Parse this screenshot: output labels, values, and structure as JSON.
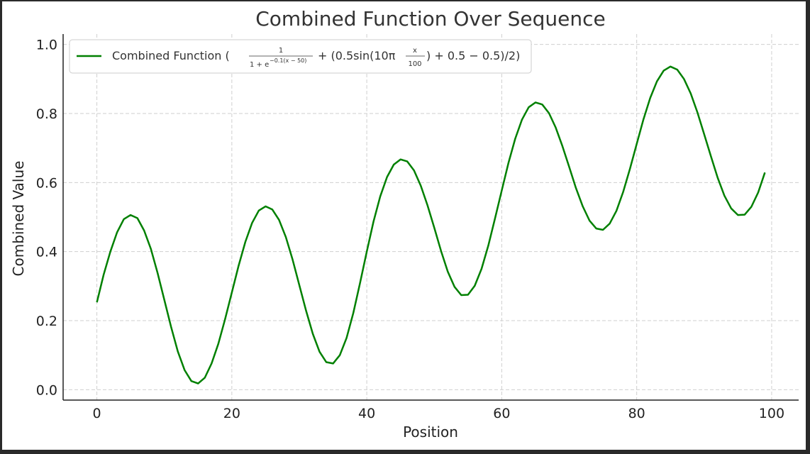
{
  "chart_data": {
    "type": "line",
    "title": "Combined Function Over Sequence",
    "xlabel": "Position",
    "ylabel": "Combined Value",
    "xlim": [
      -5,
      104
    ],
    "ylim": [
      -0.03,
      1.03
    ],
    "xticks": [
      0,
      20,
      40,
      60,
      80,
      100
    ],
    "xtick_labels": [
      "0",
      "20",
      "40",
      "60",
      "80",
      "100"
    ],
    "yticks": [
      0.0,
      0.2,
      0.4,
      0.6,
      0.8,
      1.0
    ],
    "ytick_labels": [
      "0.0",
      "0.2",
      "0.4",
      "0.6",
      "0.8",
      "1.0"
    ],
    "grid": true,
    "legend_position": "top-left",
    "color": "#008000",
    "series": [
      {
        "name": "Combined Function (1/(1 + e^{−0.1(x−50)}) + (0.5sin(10π x/100) + 0.5 − 0.5)/2)",
        "x": [
          0,
          1,
          2,
          3,
          4,
          5,
          6,
          7,
          8,
          9,
          10,
          11,
          12,
          13,
          14,
          15,
          16,
          17,
          18,
          19,
          20,
          21,
          22,
          23,
          24,
          25,
          26,
          27,
          28,
          29,
          30,
          31,
          32,
          33,
          34,
          35,
          36,
          37,
          38,
          39,
          40,
          41,
          42,
          43,
          44,
          45,
          46,
          47,
          48,
          49,
          50,
          51,
          52,
          53,
          54,
          55,
          56,
          57,
          58,
          59,
          60,
          61,
          62,
          63,
          64,
          65,
          66,
          67,
          68,
          69,
          70,
          71,
          72,
          73,
          74,
          75,
          76,
          77,
          78,
          79,
          80,
          81,
          82,
          83,
          84,
          85,
          86,
          87,
          88,
          89,
          90,
          91,
          92,
          93,
          94,
          95,
          96,
          97,
          98,
          99
        ],
        "values": [
          0.253,
          0.333,
          0.4,
          0.456,
          0.494,
          0.506,
          0.497,
          0.461,
          0.408,
          0.338,
          0.26,
          0.182,
          0.111,
          0.057,
          0.025,
          0.018,
          0.035,
          0.076,
          0.133,
          0.204,
          0.281,
          0.359,
          0.428,
          0.483,
          0.519,
          0.531,
          0.522,
          0.492,
          0.442,
          0.377,
          0.303,
          0.229,
          0.162,
          0.11,
          0.08,
          0.076,
          0.1,
          0.15,
          0.222,
          0.309,
          0.4,
          0.487,
          0.56,
          0.616,
          0.652,
          0.667,
          0.661,
          0.635,
          0.591,
          0.534,
          0.469,
          0.402,
          0.342,
          0.298,
          0.274,
          0.275,
          0.301,
          0.35,
          0.417,
          0.496,
          0.577,
          0.657,
          0.727,
          0.782,
          0.818,
          0.832,
          0.826,
          0.801,
          0.759,
          0.705,
          0.645,
          0.584,
          0.531,
          0.49,
          0.467,
          0.463,
          0.481,
          0.518,
          0.573,
          0.64,
          0.712,
          0.783,
          0.845,
          0.893,
          0.924,
          0.936,
          0.927,
          0.9,
          0.858,
          0.803,
          0.74,
          0.676,
          0.614,
          0.562,
          0.525,
          0.506,
          0.507,
          0.53,
          0.571,
          0.629
        ]
      }
    ]
  },
  "legend": {
    "prefix": "Combined Function (",
    "frac1_num": "1",
    "frac1_den_base": "1 + e",
    "frac1_den_exp": "−0.1(x − 50)",
    "middle": "+ (0.5sin(10π",
    "frac2_num": "x",
    "frac2_den": "100",
    "suffix": ") + 0.5 − 0.5)/2)"
  }
}
